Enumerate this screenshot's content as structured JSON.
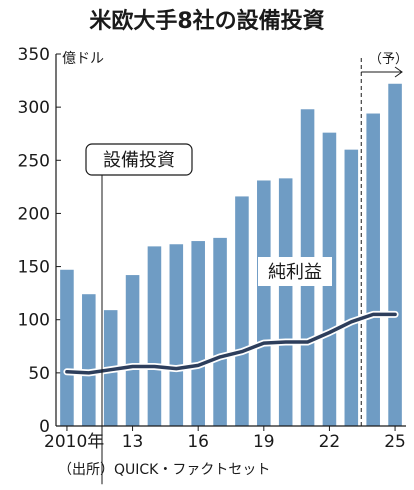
{
  "chart_data": {
    "type": "bar",
    "title": "米欧大手8社の設備投資",
    "ylabel": "億ドル",
    "source": "（出所）QUICK・ファクトセット",
    "forecast_label": "（予）",
    "ylim": [
      0,
      350
    ],
    "yticks": [
      0,
      50,
      100,
      150,
      200,
      250,
      300,
      350
    ],
    "x": [
      2010,
      2011,
      2012,
      2013,
      2014,
      2015,
      2016,
      2017,
      2018,
      2019,
      2020,
      2021,
      2022,
      2023,
      2024,
      2025
    ],
    "xtick_labels": [
      {
        "x": 2010,
        "label": "2010年"
      },
      {
        "x": 2013,
        "label": "13"
      },
      {
        "x": 2016,
        "label": "16"
      },
      {
        "x": 2019,
        "label": "19"
      },
      {
        "x": 2022,
        "label": "22"
      },
      {
        "x": 2025,
        "label": "25"
      }
    ],
    "forecast_from": 2024,
    "series": [
      {
        "name": "設備投資",
        "type": "bar",
        "color": "#6f9cc4",
        "values": [
          147,
          124,
          109,
          142,
          169,
          171,
          174,
          177,
          216,
          231,
          233,
          298,
          276,
          260,
          294,
          322
        ]
      },
      {
        "name": "純利益",
        "type": "line",
        "color": "#2d3e5c",
        "values": [
          51,
          50,
          53,
          56,
          56,
          54,
          57,
          65,
          70,
          78,
          79,
          79,
          88,
          98,
          105,
          105
        ]
      }
    ],
    "grid": false
  }
}
